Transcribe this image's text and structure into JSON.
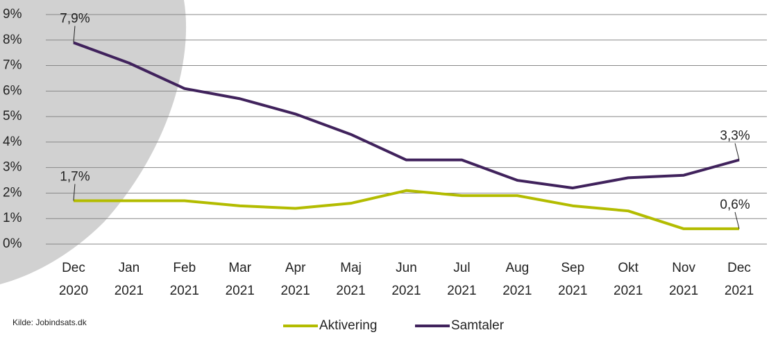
{
  "chart_data": {
    "type": "line",
    "categories": [
      [
        "Dec",
        "2020"
      ],
      [
        "Jan",
        "2021"
      ],
      [
        "Feb",
        "2021"
      ],
      [
        "Mar",
        "2021"
      ],
      [
        "Apr",
        "2021"
      ],
      [
        "Maj",
        "2021"
      ],
      [
        "Jun",
        "2021"
      ],
      [
        "Jul",
        "2021"
      ],
      [
        "Aug",
        "2021"
      ],
      [
        "Sep",
        "2021"
      ],
      [
        "Okt",
        "2021"
      ],
      [
        "Nov",
        "2021"
      ],
      [
        "Dec",
        "2021"
      ]
    ],
    "series": [
      {
        "name": "Aktivering",
        "color": "#b3bc00",
        "values": [
          1.7,
          1.7,
          1.7,
          1.5,
          1.4,
          1.6,
          2.1,
          1.9,
          1.9,
          1.5,
          1.3,
          0.6,
          0.6
        ],
        "value_labels": [
          "1,7%",
          null,
          null,
          null,
          null,
          null,
          null,
          null,
          null,
          null,
          null,
          null,
          "0,6%"
        ]
      },
      {
        "name": "Samtaler",
        "color": "#40225c",
        "values": [
          7.9,
          7.1,
          6.1,
          5.7,
          5.1,
          4.3,
          3.3,
          3.3,
          2.5,
          2.2,
          2.6,
          2.7,
          3.3
        ],
        "value_labels": [
          "7,9%",
          null,
          null,
          null,
          null,
          null,
          null,
          null,
          null,
          null,
          null,
          null,
          "3,3%"
        ]
      }
    ],
    "ylim": [
      0,
      9
    ],
    "yticks": [
      {
        "value": 0,
        "label": "0%"
      },
      {
        "value": 1,
        "label": "1%"
      },
      {
        "value": 2,
        "label": "2%"
      },
      {
        "value": 3,
        "label": "3%"
      },
      {
        "value": 4,
        "label": "4%"
      },
      {
        "value": 5,
        "label": "5%"
      },
      {
        "value": 6,
        "label": "6%"
      },
      {
        "value": 7,
        "label": "7%"
      },
      {
        "value": 8,
        "label": "8%"
      },
      {
        "value": 9,
        "label": "9%"
      }
    ],
    "grid": true,
    "legend": "bottom",
    "source": "Kilde: Jobindsats.dk"
  }
}
